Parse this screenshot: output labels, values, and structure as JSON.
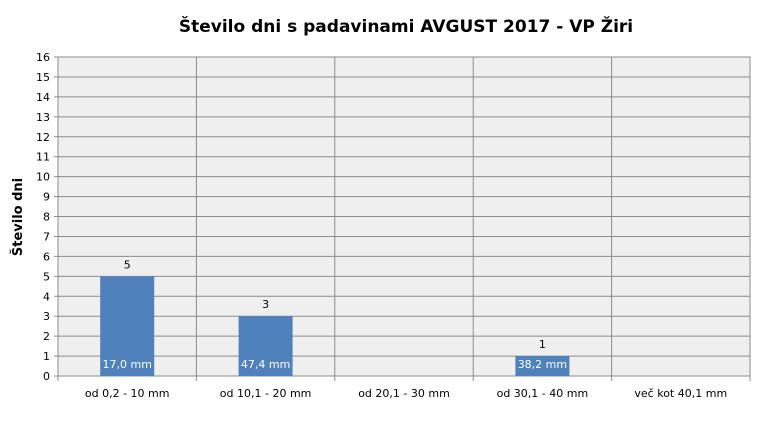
{
  "chart_data": {
    "type": "bar",
    "title": "Število dni s padavinami  AVGUST 2017 - VP Žiri",
    "xlabel": "",
    "ylabel": "Število dni",
    "ylim": [
      0,
      16
    ],
    "yticks": [
      0,
      1,
      2,
      3,
      4,
      5,
      6,
      7,
      8,
      9,
      10,
      11,
      12,
      13,
      14,
      15,
      16
    ],
    "grid": true,
    "legend": "none",
    "categories": [
      "od 0,2 - 10 mm",
      "od 10,1 - 20 mm",
      "od 20,1 - 30 mm",
      "od 30,1 - 40 mm",
      "več kot 40,1 mm"
    ],
    "values": [
      5,
      3,
      null,
      1,
      null
    ],
    "data_labels": [
      "5",
      "3",
      "",
      "1",
      ""
    ],
    "bar_labels": [
      "17,0 mm",
      "47,4 mm",
      "",
      "38,2 mm",
      ""
    ],
    "colors": {
      "bar": "#4f81bd",
      "plot_background": "#efefef",
      "grid": "#8c8c8c"
    }
  }
}
